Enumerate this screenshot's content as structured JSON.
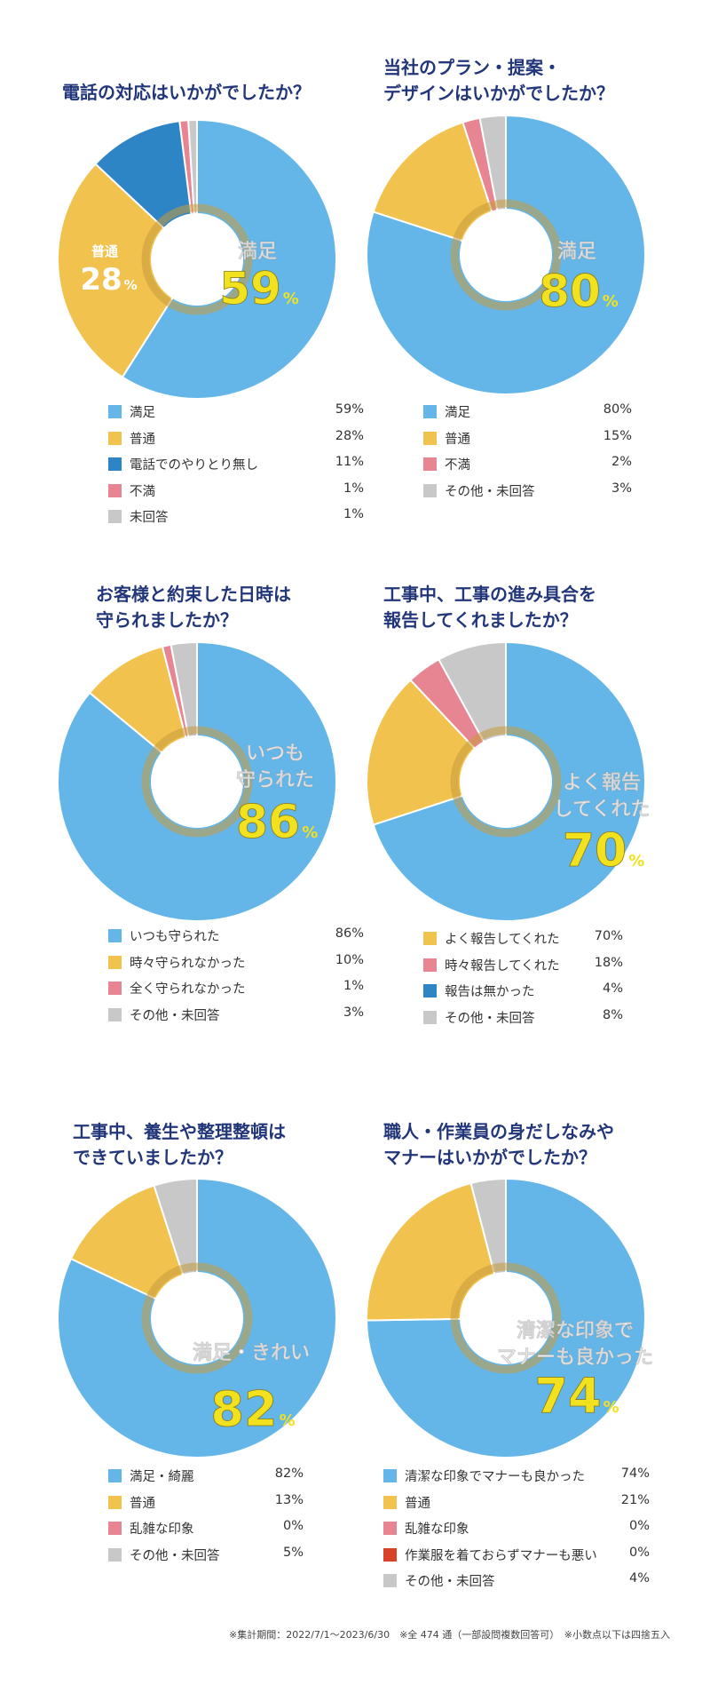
{
  "colors": {
    "light_blue": "#64b6e8",
    "yellow": "#f2c24e",
    "dark_blue": "#2e85c6",
    "pink": "#e88592",
    "gray": "#c8c8c8",
    "red": "#d84228",
    "title": "#22367a",
    "highlight": "#f1e11f"
  },
  "chart_data": [
    {
      "type": "pie",
      "title": [
        "電話の対応はいかがでしたか？"
      ],
      "categories": [
        "満足",
        "普通",
        "電話でのやりとり無し",
        "不満",
        "未回答"
      ],
      "values": [
        59,
        28,
        11,
        1,
        1
      ],
      "value_labels": [
        "59%",
        "28%",
        "11%",
        "1%",
        "1%"
      ],
      "colors": [
        "#64b6e8",
        "#f2c24e",
        "#2e85c6",
        "#e88592",
        "#c8c8c8"
      ],
      "callout": {
        "label_lines": [
          "満足"
        ],
        "number": "59",
        "unit": "%"
      },
      "callout2": {
        "label_lines": [
          "普通"
        ],
        "number": "28",
        "unit": "%"
      }
    },
    {
      "type": "pie",
      "title": [
        "当社のプラン・提案・",
        "デザインはいかがでしたか？"
      ],
      "categories": [
        "満足",
        "普通",
        "不満",
        "その他・未回答"
      ],
      "values": [
        80,
        15,
        2,
        3
      ],
      "value_labels": [
        "80%",
        "15%",
        "2%",
        "3%"
      ],
      "colors": [
        "#64b6e8",
        "#f2c24e",
        "#e88592",
        "#c8c8c8"
      ],
      "callout": {
        "label_lines": [
          "満足"
        ],
        "number": "80",
        "unit": "%"
      }
    },
    {
      "type": "pie",
      "title": [
        "お客様と約束した日時は",
        "守られましたか？"
      ],
      "categories": [
        "いつも守られた",
        "時々守られなかった",
        "全く守られなかった",
        "その他・未回答"
      ],
      "values": [
        86,
        10,
        1,
        3
      ],
      "value_labels": [
        "86%",
        "10%",
        "1%",
        "3%"
      ],
      "colors": [
        "#64b6e8",
        "#f2c24e",
        "#e88592",
        "#c8c8c8"
      ],
      "callout": {
        "label_lines": [
          "いつも",
          "守られた"
        ],
        "number": "86",
        "unit": "%"
      }
    },
    {
      "type": "pie",
      "title": [
        "工事中、工事の進み具合を",
        "報告してくれましたか？"
      ],
      "categories": [
        "よく報告してくれた",
        "時々報告してくれた",
        "報告は無かった",
        "その他・未回答"
      ],
      "values": [
        70,
        18,
        4,
        8
      ],
      "value_labels": [
        "70%",
        "18%",
        "4%",
        "8%"
      ],
      "colors": [
        "#64b6e8",
        "#f2c24e",
        "#e88592",
        "#c8c8c8"
      ],
      "legend_colors": [
        "#f2c24e",
        "#e88592",
        "#2e85c6",
        "#c8c8c8"
      ],
      "callout": {
        "label_lines": [
          "よく報告",
          "してくれた"
        ],
        "number": "70",
        "unit": "%"
      }
    },
    {
      "type": "pie",
      "title": [
        "工事中、養生や整理整頓は",
        "できていましたか？"
      ],
      "categories": [
        "満足・綺麗",
        "普通",
        "乱雑な印象",
        "その他・未回答"
      ],
      "values": [
        82,
        13,
        0,
        5
      ],
      "value_labels": [
        "82%",
        "13%",
        "0%",
        "5%"
      ],
      "colors": [
        "#64b6e8",
        "#f2c24e",
        "#e88592",
        "#c8c8c8"
      ],
      "callout": {
        "label_lines": [
          "満足・きれい"
        ],
        "number": "82",
        "unit": "%"
      }
    },
    {
      "type": "pie",
      "title": [
        "職人・作業員の身だしなみや",
        "マナーはいかがでしたか？"
      ],
      "categories": [
        "清潔な印象でマナーも良かった",
        "普通",
        "乱雑な印象",
        "作業服を着ておらずマナーも悪い",
        "その他・未回答"
      ],
      "values": [
        74,
        21,
        0,
        0,
        4
      ],
      "value_labels": [
        "74%",
        "21%",
        "0%",
        "0%",
        "4%"
      ],
      "colors": [
        "#64b6e8",
        "#f2c24e",
        "#e88592",
        "#d84228",
        "#c8c8c8"
      ],
      "callout": {
        "label_lines": [
          "清潔な印象で",
          "マナーも良かった"
        ],
        "number": "74",
        "unit": "%"
      }
    }
  ],
  "footer": "※集計期間：2022/7/1～2023/6/30　※全 474 通（一部設問複数回答可）　※小数点以下は四捨五入"
}
